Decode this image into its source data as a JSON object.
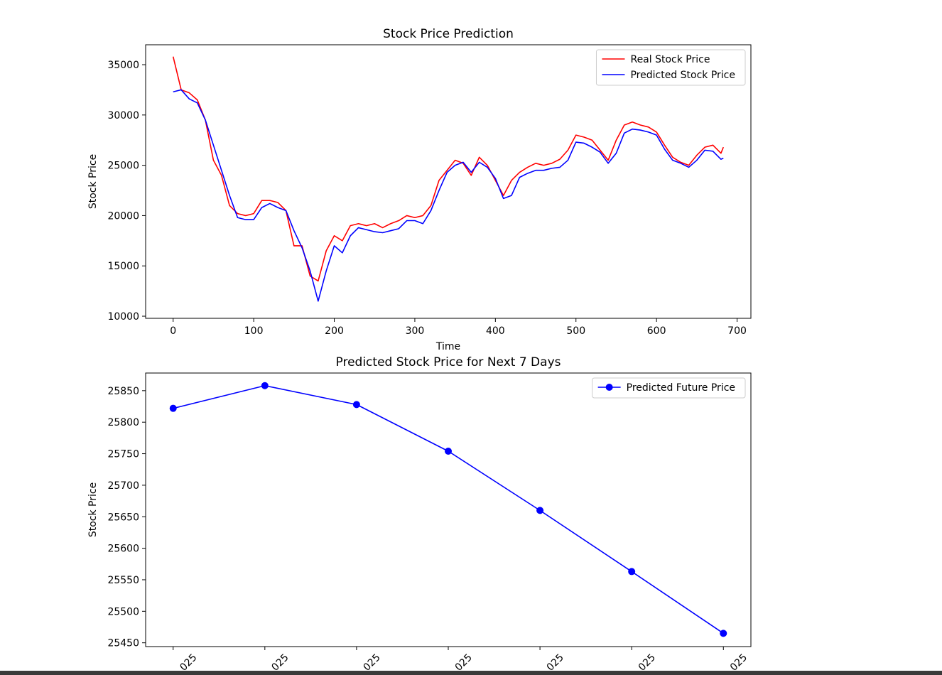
{
  "chart_data": [
    {
      "type": "line",
      "title": "Stock Price Prediction",
      "xlabel": "Time",
      "ylabel": "Stock Price",
      "x": [
        0,
        10,
        20,
        30,
        40,
        50,
        60,
        70,
        80,
        90,
        100,
        110,
        120,
        130,
        140,
        150,
        160,
        170,
        180,
        190,
        200,
        210,
        220,
        230,
        240,
        250,
        260,
        270,
        280,
        290,
        300,
        310,
        320,
        330,
        340,
        350,
        360,
        370,
        380,
        390,
        400,
        410,
        420,
        430,
        440,
        450,
        460,
        470,
        480,
        490,
        500,
        510,
        520,
        530,
        540,
        550,
        560,
        570,
        580,
        590,
        600,
        610,
        620,
        630,
        640,
        650,
        660,
        670,
        680,
        683
      ],
      "series": [
        {
          "name": "Real Stock Price",
          "color": "#ff0000",
          "values": [
            35800,
            32500,
            32200,
            31500,
            29500,
            25500,
            24000,
            21000,
            20200,
            20000,
            20200,
            21500,
            21500,
            21300,
            20500,
            17000,
            17000,
            14000,
            13500,
            16500,
            18000,
            17500,
            19000,
            19200,
            19000,
            19200,
            18800,
            19200,
            19500,
            20000,
            19800,
            20000,
            21000,
            23500,
            24500,
            25500,
            25200,
            24000,
            25800,
            25000,
            23500,
            22000,
            23500,
            24300,
            24800,
            25200,
            25000,
            25200,
            25600,
            26500,
            28000,
            27800,
            27500,
            26500,
            25500,
            27500,
            29000,
            29300,
            29000,
            28800,
            28300,
            27000,
            25800,
            25300,
            25000,
            26000,
            26800,
            27000,
            26200,
            26800
          ]
        },
        {
          "name": "Predicted Stock Price",
          "color": "#0000ff",
          "values": [
            32300,
            32500,
            31600,
            31200,
            29500,
            27000,
            24500,
            22000,
            19800,
            19600,
            19600,
            20800,
            21200,
            20800,
            20500,
            18500,
            16800,
            14500,
            11500,
            14500,
            17000,
            16300,
            18000,
            18800,
            18600,
            18400,
            18300,
            18500,
            18700,
            19500,
            19500,
            19200,
            20500,
            22500,
            24300,
            25000,
            25300,
            24300,
            25300,
            24800,
            23700,
            21700,
            22000,
            23800,
            24200,
            24500,
            24500,
            24700,
            24800,
            25500,
            27300,
            27200,
            26800,
            26300,
            25200,
            26200,
            28200,
            28600,
            28500,
            28300,
            28000,
            26600,
            25500,
            25200,
            24800,
            25500,
            26500,
            26400,
            25600,
            25700
          ]
        }
      ],
      "xlim": [
        -34.15,
        717.15
      ],
      "xticks": [
        0,
        100,
        200,
        300,
        400,
        500,
        600,
        700
      ],
      "ylim": [
        9790,
        36980
      ],
      "yticks": [
        10000,
        15000,
        20000,
        25000,
        30000,
        35000
      ],
      "legend": "upper right"
    },
    {
      "type": "line",
      "title": "Predicted Stock Price for Next 7 Days",
      "ylabel": "Stock Price",
      "categories": [
        "025",
        "025",
        "025",
        "025",
        "025",
        "025",
        "025"
      ],
      "series": [
        {
          "name": "Predicted Future Price",
          "color": "#0000ff",
          "marker": "o",
          "values": [
            25822,
            25858,
            25828,
            25754,
            25660,
            25563,
            25465
          ]
        }
      ],
      "ylim": [
        25444,
        25878
      ],
      "yticks": [
        25450,
        25500,
        25550,
        25600,
        25650,
        25700,
        25750,
        25800,
        25850
      ],
      "legend": "upper right"
    }
  ]
}
